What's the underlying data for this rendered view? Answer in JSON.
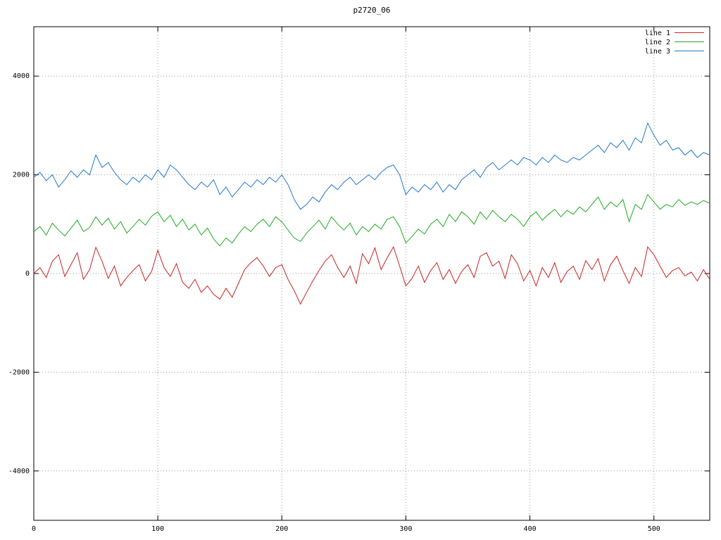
{
  "title": "p2720_06",
  "chart_data": {
    "type": "line",
    "title": "p2720_06",
    "xlabel": "",
    "ylabel": "",
    "xlim": [
      0,
      545
    ],
    "ylim": [
      -5000,
      5000
    ],
    "x_ticks": [
      0,
      100,
      200,
      300,
      400,
      500
    ],
    "y_ticks": [
      -4000,
      -2000,
      0,
      2000,
      4000
    ],
    "grid": true,
    "legend_position": "top-right",
    "x_start": 0,
    "x_step": 5,
    "series": [
      {
        "name": "line 1",
        "color": "#cc2222",
        "values": [
          0,
          120,
          -80,
          250,
          380,
          -60,
          180,
          420,
          -120,
          80,
          530,
          250,
          -100,
          150,
          -250,
          -80,
          60,
          180,
          -150,
          40,
          470,
          120,
          -60,
          200,
          -180,
          -300,
          -120,
          -380,
          -250,
          -420,
          -520,
          -300,
          -480,
          -200,
          80,
          220,
          320,
          150,
          -60,
          120,
          180,
          -120,
          -350,
          -620,
          -380,
          -150,
          60,
          250,
          380,
          120,
          -80,
          150,
          -200,
          400,
          200,
          520,
          80,
          320,
          540,
          150,
          -250,
          -100,
          150,
          -180,
          60,
          220,
          -120,
          80,
          -200,
          40,
          180,
          -80,
          350,
          420,
          150,
          250,
          -100,
          380,
          200,
          -150,
          60,
          -250,
          120,
          -80,
          220,
          -180,
          40,
          150,
          -120,
          260,
          80,
          300,
          -150,
          180,
          350,
          60,
          -200,
          120,
          -60,
          540,
          380,
          150,
          -80,
          60,
          120,
          -50,
          30,
          -150,
          80,
          -120
        ]
      },
      {
        "name": "line 2",
        "color": "#22aa22",
        "values": [
          850,
          950,
          780,
          1020,
          880,
          760,
          920,
          1080,
          850,
          930,
          1150,
          980,
          1120,
          900,
          1050,
          820,
          950,
          1100,
          980,
          1160,
          1250,
          1050,
          1180,
          950,
          1100,
          880,
          1000,
          780,
          920,
          700,
          560,
          720,
          620,
          800,
          950,
          850,
          1000,
          1100,
          950,
          1150,
          1050,
          880,
          720,
          650,
          820,
          950,
          1080,
          900,
          1150,
          1000,
          880,
          1020,
          780,
          950,
          850,
          1000,
          900,
          1100,
          1150,
          950,
          620,
          750,
          900,
          800,
          1000,
          1100,
          950,
          1200,
          1050,
          1250,
          1150,
          1000,
          1250,
          1100,
          1280,
          1150,
          1050,
          1200,
          1100,
          950,
          1150,
          1250,
          1080,
          1200,
          1300,
          1150,
          1280,
          1200,
          1350,
          1250,
          1400,
          1550,
          1300,
          1450,
          1350,
          1500,
          1050,
          1400,
          1300,
          1600,
          1450,
          1300,
          1400,
          1350,
          1500,
          1380,
          1450,
          1400,
          1480,
          1420
        ]
      },
      {
        "name": "line 3",
        "color": "#2277cc",
        "values": [
          1950,
          2050,
          1880,
          2000,
          1750,
          1900,
          2080,
          1950,
          2100,
          2000,
          2400,
          2150,
          2250,
          2050,
          1900,
          1800,
          1950,
          1850,
          2000,
          1900,
          2100,
          1950,
          2200,
          2100,
          1950,
          1800,
          1700,
          1850,
          1750,
          1900,
          1600,
          1750,
          1550,
          1700,
          1850,
          1750,
          1900,
          1800,
          1950,
          1850,
          2000,
          1800,
          1500,
          1300,
          1400,
          1550,
          1450,
          1650,
          1800,
          1700,
          1850,
          1950,
          1800,
          1900,
          2000,
          1900,
          2050,
          2150,
          2200,
          2000,
          1600,
          1750,
          1650,
          1800,
          1700,
          1850,
          1650,
          1800,
          1700,
          1900,
          2000,
          2100,
          1950,
          2150,
          2250,
          2100,
          2200,
          2300,
          2200,
          2350,
          2300,
          2200,
          2350,
          2250,
          2400,
          2300,
          2250,
          2350,
          2300,
          2400,
          2500,
          2600,
          2450,
          2650,
          2550,
          2700,
          2500,
          2750,
          2650,
          3050,
          2800,
          2600,
          2700,
          2500,
          2550,
          2400,
          2500,
          2350,
          2450,
          2400
        ]
      }
    ]
  }
}
